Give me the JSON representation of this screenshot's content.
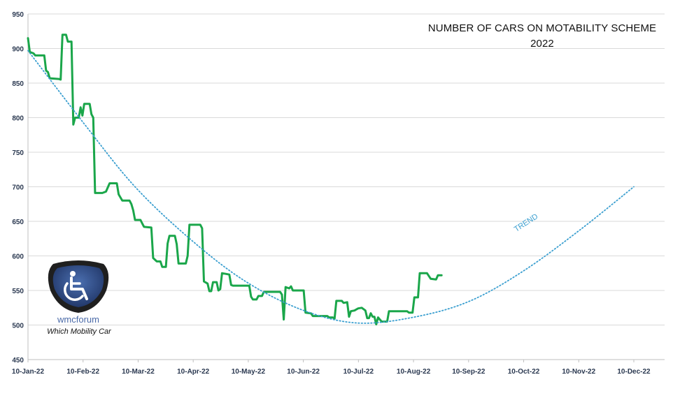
{
  "chart_data": {
    "type": "line",
    "title_lines": [
      "NUMBER OF CARS ON MOTABILITY SCHEME",
      "2022"
    ],
    "xlabel": "",
    "ylabel": "",
    "ylim": [
      450,
      950
    ],
    "yticks": [
      450,
      500,
      550,
      600,
      650,
      700,
      750,
      800,
      850,
      900,
      950
    ],
    "xlim": [
      "2022-01-10",
      "2022-12-10"
    ],
    "xtick_labels": [
      "10-Jan-22",
      "10-Feb-22",
      "10-Mar-22",
      "10-Apr-22",
      "10-May-22",
      "10-Jun-22",
      "10-Jul-22",
      "10-Aug-22",
      "10-Sep-22",
      "10-Oct-22",
      "10-Nov-22",
      "10-Dec-22"
    ],
    "grid": "horizontal",
    "series": [
      {
        "name": "",
        "color": "#1aa64a",
        "style": "solid",
        "points": [
          [
            "2022-01-10",
            915
          ],
          [
            "2022-01-11",
            895
          ],
          [
            "2022-01-13",
            893
          ],
          [
            "2022-01-14",
            890
          ],
          [
            "2022-01-19",
            890
          ],
          [
            "2022-01-20",
            868
          ],
          [
            "2022-01-21",
            866
          ],
          [
            "2022-01-22",
            857
          ],
          [
            "2022-01-27",
            856
          ],
          [
            "2022-01-28",
            855
          ],
          [
            "2022-01-29",
            920
          ],
          [
            "2022-01-31",
            920
          ],
          [
            "2022-02-01",
            910
          ],
          [
            "2022-02-03",
            910
          ],
          [
            "2022-02-04",
            790
          ],
          [
            "2022-02-05",
            800
          ],
          [
            "2022-02-07",
            800
          ],
          [
            "2022-02-08",
            815
          ],
          [
            "2022-02-09",
            803
          ],
          [
            "2022-02-10",
            820
          ],
          [
            "2022-02-13",
            820
          ],
          [
            "2022-02-14",
            805
          ],
          [
            "2022-02-15",
            800
          ],
          [
            "2022-02-16",
            691
          ],
          [
            "2022-02-20",
            691
          ],
          [
            "2022-02-22",
            693
          ],
          [
            "2022-02-24",
            705
          ],
          [
            "2022-02-28",
            705
          ],
          [
            "2022-03-01",
            689
          ],
          [
            "2022-03-03",
            680
          ],
          [
            "2022-03-07",
            680
          ],
          [
            "2022-03-08",
            675
          ],
          [
            "2022-03-09",
            666
          ],
          [
            "2022-03-10",
            652
          ],
          [
            "2022-03-13",
            652
          ],
          [
            "2022-03-14",
            647
          ],
          [
            "2022-03-15",
            642
          ],
          [
            "2022-03-19",
            641
          ],
          [
            "2022-03-20",
            597
          ],
          [
            "2022-03-22",
            592
          ],
          [
            "2022-03-24",
            592
          ],
          [
            "2022-03-25",
            584
          ],
          [
            "2022-03-27",
            584
          ],
          [
            "2022-03-28",
            618
          ],
          [
            "2022-03-29",
            629
          ],
          [
            "2022-04-01",
            629
          ],
          [
            "2022-04-02",
            617
          ],
          [
            "2022-04-03",
            589
          ],
          [
            "2022-04-07",
            589
          ],
          [
            "2022-04-08",
            600
          ],
          [
            "2022-04-09",
            645
          ],
          [
            "2022-04-13",
            645
          ],
          [
            "2022-04-15",
            645
          ],
          [
            "2022-04-16",
            640
          ],
          [
            "2022-04-17",
            563
          ],
          [
            "2022-04-19",
            560
          ],
          [
            "2022-04-20",
            549
          ],
          [
            "2022-04-21",
            549
          ],
          [
            "2022-04-22",
            562
          ],
          [
            "2022-04-24",
            562
          ],
          [
            "2022-04-25",
            550
          ],
          [
            "2022-04-26",
            552
          ],
          [
            "2022-04-27",
            575
          ],
          [
            "2022-04-29",
            574
          ],
          [
            "2022-05-01",
            573
          ],
          [
            "2022-05-02",
            558
          ],
          [
            "2022-05-03",
            557
          ],
          [
            "2022-05-12",
            557
          ],
          [
            "2022-05-13",
            541
          ],
          [
            "2022-05-14",
            537
          ],
          [
            "2022-05-16",
            537
          ],
          [
            "2022-05-17",
            542
          ],
          [
            "2022-05-19",
            542
          ],
          [
            "2022-05-20",
            548
          ],
          [
            "2022-05-29",
            548
          ],
          [
            "2022-05-30",
            544
          ],
          [
            "2022-05-31",
            508
          ],
          [
            "2022-06-01",
            555
          ],
          [
            "2022-06-03",
            553
          ],
          [
            "2022-06-04",
            556
          ],
          [
            "2022-06-05",
            550
          ],
          [
            "2022-06-11",
            550
          ],
          [
            "2022-06-12",
            518
          ],
          [
            "2022-06-15",
            517
          ],
          [
            "2022-06-16",
            513
          ],
          [
            "2022-06-24",
            513
          ],
          [
            "2022-06-25",
            511
          ],
          [
            "2022-06-27",
            511
          ],
          [
            "2022-06-28",
            509
          ],
          [
            "2022-06-29",
            535
          ],
          [
            "2022-07-02",
            535
          ],
          [
            "2022-07-03",
            532
          ],
          [
            "2022-07-05",
            533
          ],
          [
            "2022-07-06",
            512
          ],
          [
            "2022-07-07",
            520
          ],
          [
            "2022-07-09",
            521
          ],
          [
            "2022-07-11",
            524
          ],
          [
            "2022-07-13",
            525
          ],
          [
            "2022-07-15",
            521
          ],
          [
            "2022-07-16",
            510
          ],
          [
            "2022-07-17",
            510
          ],
          [
            "2022-07-18",
            517
          ],
          [
            "2022-07-19",
            512
          ],
          [
            "2022-07-20",
            512
          ],
          [
            "2022-07-21",
            501
          ],
          [
            "2022-07-22",
            511
          ],
          [
            "2022-07-24",
            505
          ],
          [
            "2022-07-27",
            505
          ],
          [
            "2022-07-28",
            520
          ],
          [
            "2022-08-07",
            520
          ],
          [
            "2022-08-08",
            518
          ],
          [
            "2022-08-10",
            518
          ],
          [
            "2022-08-11",
            540
          ],
          [
            "2022-08-13",
            540
          ],
          [
            "2022-08-14",
            575
          ],
          [
            "2022-08-18",
            575
          ],
          [
            "2022-08-20",
            567
          ],
          [
            "2022-08-23",
            566
          ],
          [
            "2022-08-24",
            572
          ],
          [
            "2022-08-26",
            572
          ]
        ]
      },
      {
        "name": "TREND",
        "color": "#3b9fd0",
        "style": "dotted",
        "points": [
          [
            "2022-01-10",
            897
          ],
          [
            "2022-02-10",
            791
          ],
          [
            "2022-03-10",
            700
          ],
          [
            "2022-04-10",
            623
          ],
          [
            "2022-05-10",
            563
          ],
          [
            "2022-06-10",
            522
          ],
          [
            "2022-07-10",
            503
          ],
          [
            "2022-08-10",
            511
          ],
          [
            "2022-09-10",
            534
          ],
          [
            "2022-10-10",
            578
          ],
          [
            "2022-11-10",
            637
          ],
          [
            "2022-12-10",
            700
          ]
        ]
      }
    ]
  },
  "logo": {
    "icon": "wheelchair-icon",
    "wordmark": "wmcforum",
    "tagline": "Which Mobility Car"
  }
}
